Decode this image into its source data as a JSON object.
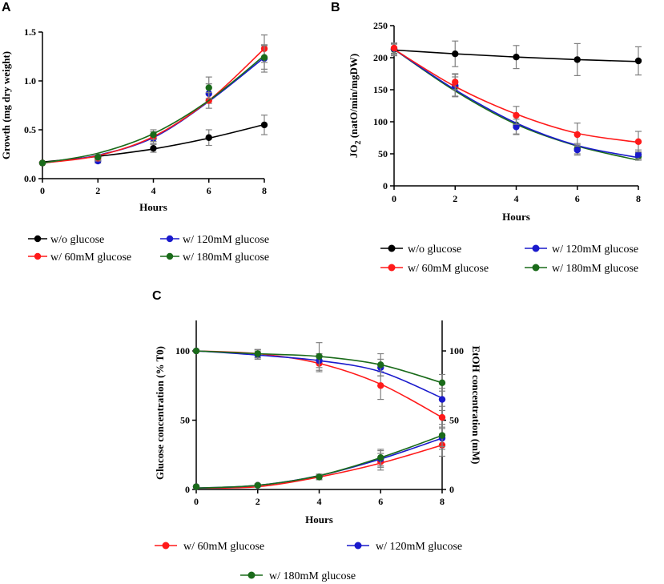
{
  "colors": {
    "without": "#000000",
    "g60": "#ff1a1a",
    "g120": "#1a1acc",
    "g180": "#1a6b1a",
    "errorbar": "#808080"
  },
  "chart_data": [
    {
      "panel": "A",
      "type": "line",
      "xlabel": "Hours",
      "ylabel": "Growth (mg dry weight)",
      "x_ticks": [
        "0",
        "2",
        "4",
        "6",
        "8"
      ],
      "y_ticks": [
        "0.0",
        "0.5",
        "1.0",
        "1.5"
      ],
      "xlim": [
        0,
        8
      ],
      "ylim": [
        0,
        1.5
      ],
      "x": [
        0,
        2,
        4,
        6,
        8
      ],
      "series": [
        {
          "key": "without",
          "name": "w/o glucose",
          "values": [
            0.16,
            0.22,
            0.31,
            0.42,
            0.55
          ],
          "errors": [
            0,
            0.03,
            0.04,
            0.08,
            0.1
          ],
          "fit": [
            0.17,
            0.228,
            0.304,
            0.414,
            0.553
          ]
        },
        {
          "key": "g60",
          "name": "w/ 60mM glucose",
          "values": [
            0.16,
            0.21,
            0.43,
            0.8,
            1.33
          ],
          "errors": [
            0,
            0.03,
            0.05,
            0.08,
            0.14
          ],
          "fit": [
            0.16,
            0.235,
            0.43,
            0.8,
            1.33
          ]
        },
        {
          "key": "g120",
          "name": "w/ 120mM glucose",
          "values": [
            0.16,
            0.18,
            0.41,
            0.87,
            1.23
          ],
          "errors": [
            0,
            0.02,
            0.05,
            0.1,
            0.14
          ],
          "fit": [
            0.16,
            0.24,
            0.42,
            0.79,
            1.24
          ]
        },
        {
          "key": "g180",
          "name": "w/ 180mM glucose",
          "values": [
            0.16,
            0.22,
            0.45,
            0.93,
            1.24
          ],
          "errors": [
            0,
            0.03,
            0.05,
            0.11,
            0.12
          ],
          "fit": [
            0.16,
            0.26,
            0.46,
            0.8,
            1.26
          ]
        }
      ],
      "legend_order": [
        "without",
        "g120",
        "g60",
        "g180"
      ]
    },
    {
      "panel": "B",
      "type": "line",
      "xlabel": "Hours",
      "ylabel_main": "JO",
      "ylabel_sub": "2",
      "ylabel_rest": " (natO/min/mgDW)",
      "x_ticks": [
        "0",
        "2",
        "4",
        "6",
        "8"
      ],
      "y_ticks": [
        "0",
        "50",
        "100",
        "150",
        "200",
        "250"
      ],
      "xlim": [
        0,
        8
      ],
      "ylim": [
        0,
        250
      ],
      "x": [
        0,
        2,
        4,
        6,
        8
      ],
      "series": [
        {
          "key": "without",
          "name": "w/o glucose",
          "values": [
            213,
            206,
            201,
            197,
            195
          ],
          "errors": [
            10,
            20,
            18,
            25,
            22
          ],
          "fit": [
            212,
            206,
            201,
            197,
            194
          ]
        },
        {
          "key": "g60",
          "name": "w/ 60mM glucose",
          "values": [
            215,
            162,
            110,
            80,
            69
          ],
          "errors": [
            8,
            12,
            14,
            18,
            16
          ],
          "fit": [
            213,
            155,
            112,
            82,
            68
          ]
        },
        {
          "key": "g120",
          "name": "w/ 120mM glucose",
          "values": [
            214,
            157,
            92,
            56,
            49
          ],
          "errors": [
            8,
            18,
            12,
            8,
            7
          ],
          "fit": [
            213,
            150,
            98,
            63,
            44
          ]
        },
        {
          "key": "g180",
          "name": "w/ 180mM glucose",
          "values": [
            213,
            155,
            95,
            58,
            46
          ],
          "errors": [
            8,
            15,
            14,
            8,
            6
          ],
          "fit": [
            213,
            148,
            96,
            62,
            40
          ]
        }
      ],
      "legend_order": [
        "without",
        "g120",
        "g60",
        "g180"
      ]
    },
    {
      "panel": "C",
      "type": "line",
      "xlabel": "Hours",
      "ylabel_left": "Glucose concentration (% T0)",
      "ylabel_right": "EtOH concentration (mM)",
      "x_ticks": [
        "0",
        "2",
        "4",
        "6",
        "8"
      ],
      "y_ticks_left": [
        "0",
        "50",
        "100"
      ],
      "y_ticks_right": [
        "0",
        "50",
        "100"
      ],
      "xlim": [
        0,
        8
      ],
      "ylim": [
        0,
        122
      ],
      "x": [
        0,
        2,
        4,
        6,
        8
      ],
      "glucose_series": [
        {
          "key": "g60",
          "name": "w/ 60mM glucose",
          "values": [
            100,
            98,
            91,
            75,
            52
          ],
          "errors": [
            0,
            3,
            6,
            10,
            8
          ],
          "fit": [
            100,
            98,
            91,
            76,
            52
          ]
        },
        {
          "key": "g120",
          "name": "w/ 120mM glucose",
          "values": [
            100,
            97,
            93,
            88,
            65
          ],
          "errors": [
            0,
            3,
            5,
            6,
            8
          ],
          "fit": [
            100,
            97,
            93,
            85,
            66
          ]
        },
        {
          "key": "g180",
          "name": "w/ 180mM glucose",
          "values": [
            100,
            98,
            96,
            90,
            77
          ],
          "errors": [
            0,
            3,
            10,
            8,
            6
          ],
          "fit": [
            100,
            98,
            96,
            90,
            77
          ]
        }
      ],
      "ethanol_series": [
        {
          "key": "g60",
          "name": "w/ 60mM glucose",
          "values": [
            2,
            3,
            9,
            20,
            32
          ],
          "errors": [
            0,
            1,
            2,
            6,
            8
          ],
          "fit": [
            1,
            2,
            9,
            19,
            32
          ]
        },
        {
          "key": "g120",
          "name": "w/ 120mM glucose",
          "values": [
            2,
            3,
            9,
            22,
            37
          ],
          "errors": [
            0,
            1,
            2,
            6,
            8
          ],
          "fit": [
            1,
            3,
            10,
            22,
            37
          ]
        },
        {
          "key": "g180",
          "name": "w/ 180mM glucose",
          "values": [
            2,
            3,
            9,
            23,
            39
          ],
          "errors": [
            0,
            1,
            2,
            6,
            8
          ],
          "fit": [
            1,
            3,
            10,
            23,
            39
          ]
        }
      ],
      "legend_order": [
        "g60",
        "g120",
        "g180"
      ]
    }
  ]
}
